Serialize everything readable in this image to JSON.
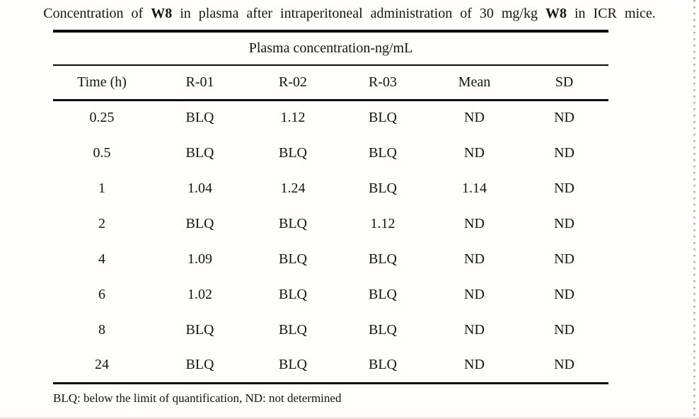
{
  "caption": {
    "parts": [
      {
        "text": "Concentration of ",
        "bold": false
      },
      {
        "text": "W8",
        "bold": true
      },
      {
        "text": " in plasma after intraperitoneal administration of 30 mg/kg ",
        "bold": false
      },
      {
        "text": "W8",
        "bold": true
      },
      {
        "text": " in ICR mice.",
        "bold": false
      }
    ]
  },
  "table": {
    "spanning_header": "Plasma concentration-ng/mL",
    "columns": [
      "Time (h)",
      "R-01",
      "R-02",
      "R-03",
      "Mean",
      "SD"
    ],
    "rows": [
      [
        "0.25",
        "BLQ",
        "1.12",
        "BLQ",
        "ND",
        "ND"
      ],
      [
        "0.5",
        "BLQ",
        "BLQ",
        "BLQ",
        "ND",
        "ND"
      ],
      [
        "1",
        "1.04",
        "1.24",
        "BLQ",
        "1.14",
        "ND"
      ],
      [
        "2",
        "BLQ",
        "BLQ",
        "1.12",
        "ND",
        "ND"
      ],
      [
        "4",
        "1.09",
        "BLQ",
        "BLQ",
        "ND",
        "ND"
      ],
      [
        "6",
        "1.02",
        "BLQ",
        "BLQ",
        "ND",
        "ND"
      ],
      [
        "8",
        "BLQ",
        "BLQ",
        "BLQ",
        "ND",
        "ND"
      ],
      [
        "24",
        "BLQ",
        "BLQ",
        "BLQ",
        "ND",
        "ND"
      ]
    ],
    "footnote": "BLQ: below the limit of quantification, ND: not determined"
  },
  "colors": {
    "text": "#141414",
    "rule": "#0a0a0a",
    "background": "#fffefd",
    "edge_dots": "#ba684a",
    "edge_bottom": "#f0c4b6"
  }
}
